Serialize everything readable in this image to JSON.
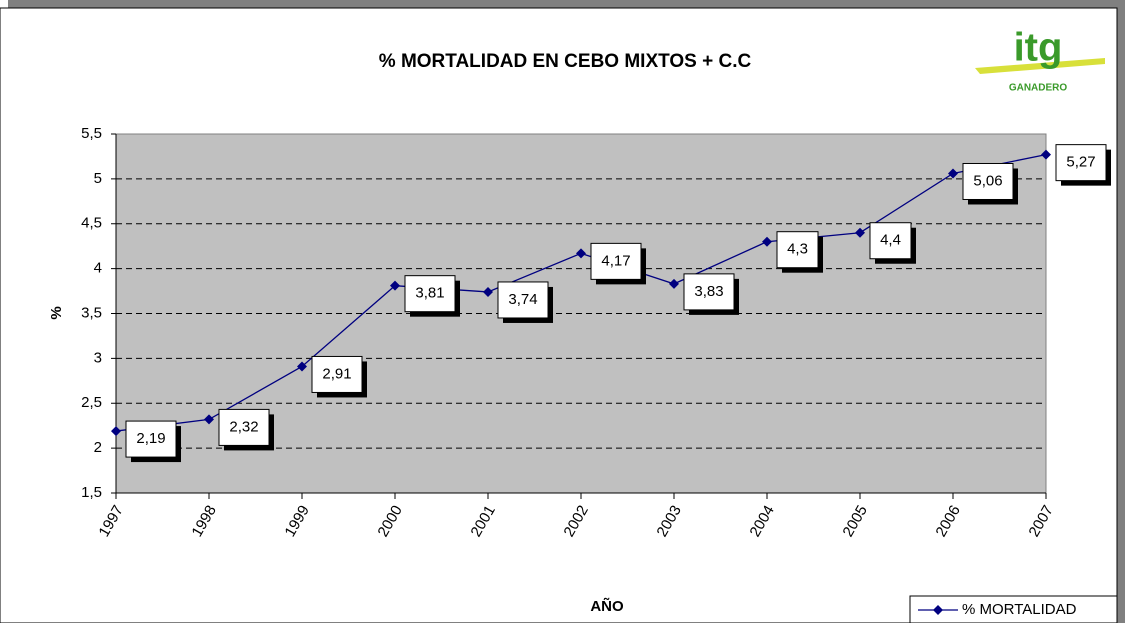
{
  "chart_data": {
    "type": "line",
    "title": "% MORTALIDAD EN CEBO MIXTOS + C.C",
    "logo": {
      "text": "itg",
      "subtext": "GANADERO"
    },
    "x_label": "AÑO",
    "y_label": "%",
    "categories": [
      "1997",
      "1998",
      "1999",
      "2000",
      "2001",
      "2002",
      "2003",
      "2004",
      "2005",
      "2006",
      "2007"
    ],
    "series": [
      {
        "name": "% MORTALIDAD",
        "color": "#000080",
        "values": [
          2.19,
          2.32,
          2.91,
          3.81,
          3.74,
          4.17,
          3.83,
          4.3,
          4.4,
          5.06,
          5.27
        ],
        "value_labels": [
          "2,19",
          "2,32",
          "2,91",
          "3,81",
          "3,74",
          "4,17",
          "3,83",
          "4,3",
          "4,4",
          "5,06",
          "5,27"
        ]
      }
    ],
    "ylim": [
      1.5,
      5.5
    ],
    "yticks": [
      {
        "value": 1.5,
        "label": "1,5"
      },
      2,
      {
        "value": 2.5,
        "label": "2,5"
      },
      3,
      {
        "value": 3.5,
        "label": "3,5"
      },
      4,
      {
        "value": 4.5,
        "label": "4,5"
      },
      5,
      {
        "value": 5.5,
        "label": "5,5"
      }
    ],
    "grid": true,
    "plot_background": "#c0c0c0",
    "legend": "bottom-right"
  }
}
